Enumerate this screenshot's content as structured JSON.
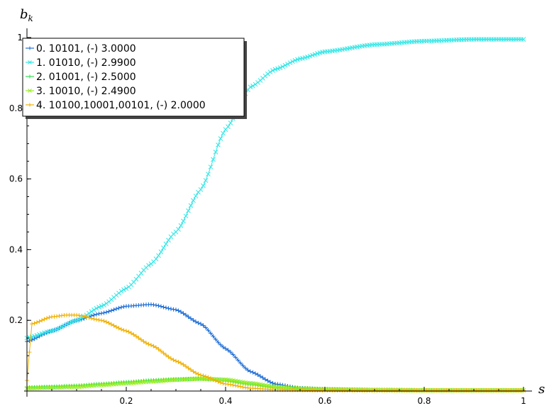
{
  "chart_data": {
    "type": "scatter",
    "title": "",
    "xlabel": "s",
    "ylabel_main": "b",
    "ylabel_sub": "k",
    "xlim": [
      0,
      1
    ],
    "ylim": [
      0,
      1
    ],
    "x_ticks": [
      0.2,
      0.4,
      0.6,
      0.8,
      1
    ],
    "x_tick_labels": [
      "0.2",
      "0.4",
      "0.6",
      "0.8",
      "1"
    ],
    "y_ticks": [
      0.2,
      0.4,
      0.6,
      0.8,
      1
    ],
    "y_tick_labels": [
      "0.2",
      "0.4",
      "0.6",
      "0.8",
      "1"
    ],
    "grid": false,
    "legend_position": "top-left",
    "series": [
      {
        "name": "0. 10101, (-) 3.0000",
        "color": "#1f6fd6",
        "marker": "plus",
        "x": [
          0,
          0.05,
          0.1,
          0.15,
          0.2,
          0.25,
          0.3,
          0.35,
          0.4,
          0.45,
          0.5,
          0.55,
          0.6,
          0.7,
          0.8,
          0.9,
          1
        ],
        "y": [
          0.14,
          0.17,
          0.2,
          0.22,
          0.24,
          0.245,
          0.23,
          0.19,
          0.12,
          0.055,
          0.02,
          0.008,
          0.005,
          0.003,
          0.002,
          0.002,
          0.002
        ]
      },
      {
        "name": "1. 01010, (-) 2.9900",
        "color": "#33e6e6",
        "marker": "x",
        "x": [
          0,
          0.05,
          0.1,
          0.15,
          0.2,
          0.25,
          0.3,
          0.35,
          0.4,
          0.45,
          0.5,
          0.55,
          0.6,
          0.7,
          0.8,
          0.9,
          1
        ],
        "y": [
          0.15,
          0.17,
          0.2,
          0.24,
          0.29,
          0.36,
          0.45,
          0.57,
          0.74,
          0.86,
          0.91,
          0.94,
          0.96,
          0.98,
          0.99,
          0.995,
          0.995
        ]
      },
      {
        "name": "2. 01001, (-) 2.5000",
        "color": "#33dd55",
        "marker": "plus",
        "x": [
          0,
          0.05,
          0.1,
          0.15,
          0.2,
          0.25,
          0.3,
          0.35,
          0.4,
          0.45,
          0.5,
          0.55,
          0.6,
          0.7,
          0.8,
          0.9,
          1
        ],
        "y": [
          0.01,
          0.012,
          0.015,
          0.02,
          0.025,
          0.03,
          0.033,
          0.035,
          0.03,
          0.02,
          0.01,
          0.006,
          0.004,
          0.003,
          0.002,
          0.002,
          0.002
        ]
      },
      {
        "name": "3. 10010, (-) 2.4900",
        "color": "#99ee22",
        "marker": "x",
        "x": [
          0,
          0.05,
          0.1,
          0.15,
          0.2,
          0.25,
          0.3,
          0.35,
          0.4,
          0.45,
          0.5,
          0.55,
          0.6,
          0.7,
          0.8,
          0.9,
          1
        ],
        "y": [
          0.008,
          0.01,
          0.012,
          0.017,
          0.022,
          0.027,
          0.032,
          0.035,
          0.032,
          0.022,
          0.012,
          0.007,
          0.005,
          0.003,
          0.002,
          0.002,
          0.002
        ]
      },
      {
        "name": "4. 10100,10001,00101, (-) 2.0000",
        "color": "#f0b000",
        "marker": "plus",
        "x": [
          0,
          0.01,
          0.05,
          0.08,
          0.1,
          0.15,
          0.2,
          0.25,
          0.3,
          0.35,
          0.4,
          0.45,
          0.5,
          0.55,
          0.6,
          0.7,
          0.8,
          0.9,
          1
        ],
        "y": [
          0.03,
          0.19,
          0.21,
          0.215,
          0.215,
          0.2,
          0.17,
          0.13,
          0.085,
          0.045,
          0.02,
          0.008,
          0.004,
          0.003,
          0.002,
          0.002,
          0.002,
          0.002,
          0.002
        ]
      }
    ]
  }
}
